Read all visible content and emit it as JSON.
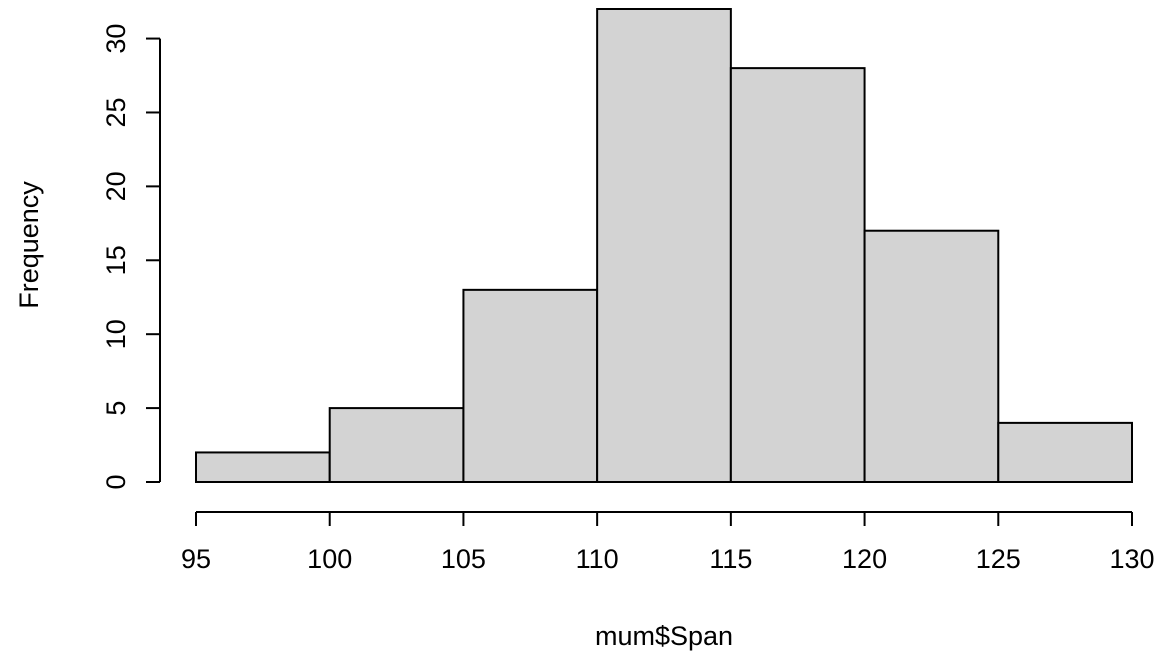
{
  "chart_data": {
    "type": "bar",
    "histogram": true,
    "bins": [
      {
        "from": 95,
        "to": 100,
        "count": 2
      },
      {
        "from": 100,
        "to": 105,
        "count": 5
      },
      {
        "from": 105,
        "to": 110,
        "count": 13
      },
      {
        "from": 110,
        "to": 115,
        "count": 32
      },
      {
        "from": 115,
        "to": 120,
        "count": 28
      },
      {
        "from": 120,
        "to": 125,
        "count": 17
      },
      {
        "from": 125,
        "to": 130,
        "count": 4
      }
    ],
    "xlabel": "mum$Span",
    "ylabel": "Frequency",
    "xlim": [
      95,
      130
    ],
    "ylim": [
      0,
      32
    ],
    "x_ticks": [
      "95",
      "100",
      "105",
      "110",
      "115",
      "120",
      "125",
      "130"
    ],
    "y_ticks": [
      "0",
      "5",
      "10",
      "15",
      "20",
      "25",
      "30"
    ],
    "bar_fill": "#d3d3d3",
    "bar_stroke": "#000000",
    "grid": false
  }
}
